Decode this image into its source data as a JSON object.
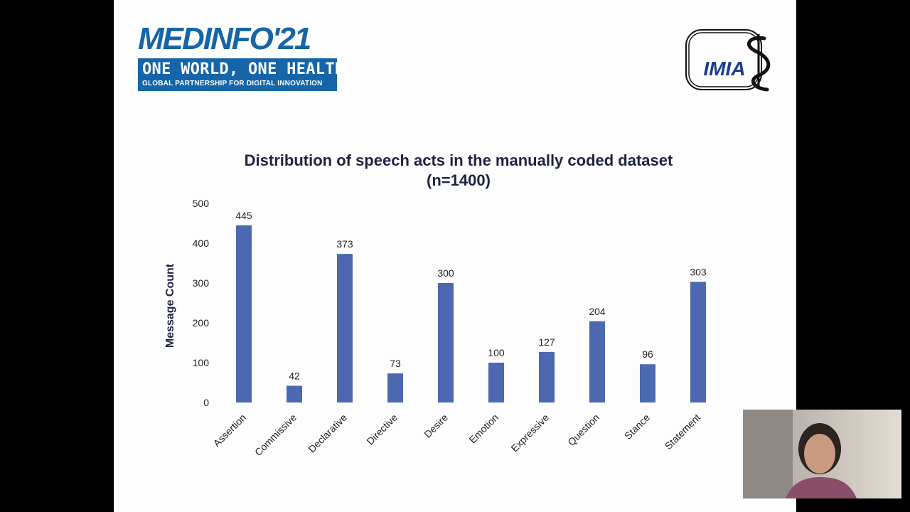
{
  "logo": {
    "main": "MEDINFO'21",
    "line1": "ONE WORLD, ONE HEALTH",
    "line2": "GLOBAL PARTNERSHIP FOR DIGITAL INNOVATION"
  },
  "imia_logo": {
    "text": "IMIA"
  },
  "chart_data": {
    "type": "bar",
    "title": "Distribution of speech acts in the manually coded dataset (n=1400)",
    "xlabel": "",
    "ylabel": "Message Count",
    "categories": [
      "Assertion",
      "Commissive",
      "Declarative",
      "Directive",
      "Desire",
      "Emotion",
      "Expressive",
      "Question",
      "Stance",
      "Statement"
    ],
    "values": [
      445,
      42,
      373,
      73,
      300,
      100,
      127,
      204,
      96,
      303
    ],
    "ylim": [
      0,
      500
    ],
    "yticks": [
      0,
      100,
      200,
      300,
      400,
      500
    ],
    "grid": false,
    "legend": "none",
    "bar_color": "#4b68b0",
    "data_labels": true
  }
}
